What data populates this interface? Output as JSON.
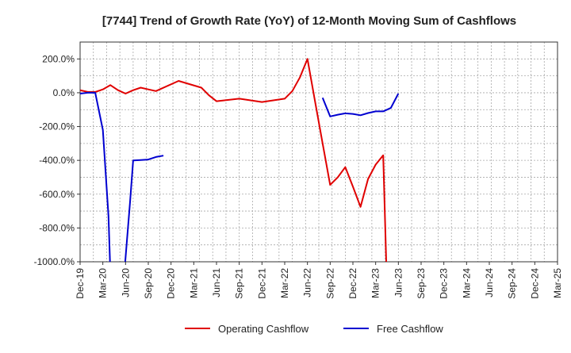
{
  "chart_data": {
    "type": "line",
    "title": "[7744]  Trend of Growth Rate (YoY) of 12-Month Moving Sum of Cashflows",
    "xlabel": "",
    "ylabel": "",
    "x_ticks": [
      "Dec-19",
      "Mar-20",
      "Jun-20",
      "Sep-20",
      "Dec-20",
      "Mar-21",
      "Jun-21",
      "Sep-21",
      "Dec-21",
      "Mar-22",
      "Jun-22",
      "Sep-22",
      "Dec-22",
      "Mar-23",
      "Jun-23",
      "Sep-23",
      "Dec-23",
      "Mar-24",
      "Jun-24",
      "Sep-24",
      "Dec-24",
      "Mar-25"
    ],
    "y_ticks": [
      "200.0%",
      "0.0%",
      "-200.0%",
      "-400.0%",
      "-600.0%",
      "-800.0%",
      "-1000.0%"
    ],
    "ylim": [
      -1000,
      300
    ],
    "grid": true,
    "legend_position": "bottom",
    "series": [
      {
        "name": "Operating Cashflow",
        "color": "#e00000",
        "points": [
          [
            0,
            15
          ],
          [
            1,
            5
          ],
          [
            2,
            5
          ],
          [
            3,
            20
          ],
          [
            4,
            45
          ],
          [
            5,
            15
          ],
          [
            6,
            -5
          ],
          [
            7,
            15
          ],
          [
            8,
            30
          ],
          [
            9,
            20
          ],
          [
            10,
            10
          ],
          [
            13,
            70
          ],
          [
            16,
            30
          ],
          [
            17,
            -15
          ],
          [
            18,
            -50
          ],
          [
            21,
            -35
          ],
          [
            24,
            -55
          ],
          [
            27,
            -35
          ],
          [
            28,
            10
          ],
          [
            29,
            90
          ],
          [
            30,
            200
          ],
          [
            31,
            -50
          ],
          [
            32,
            -300
          ],
          [
            33,
            -545
          ],
          [
            34,
            -500
          ],
          [
            35,
            -440
          ],
          [
            36,
            -555
          ],
          [
            37,
            -675
          ],
          [
            38,
            -510
          ],
          [
            39,
            -425
          ],
          [
            40,
            -370
          ],
          [
            40.4,
            -1000
          ]
        ]
      },
      {
        "name": "Free Cashflow",
        "color": "#0000d0",
        "points": [
          [
            0,
            -5
          ],
          [
            1,
            0
          ],
          [
            2,
            0
          ],
          [
            3,
            -220
          ],
          [
            3.75,
            -730
          ],
          [
            3.95,
            -1000
          ],
          null,
          [
            5.95,
            -1000
          ],
          [
            6.6,
            -640
          ],
          [
            7,
            -400
          ],
          [
            8,
            -398
          ],
          [
            9,
            -395
          ],
          [
            10,
            -380
          ],
          [
            11,
            -372
          ],
          null,
          [
            32,
            -30
          ],
          [
            33,
            -140
          ],
          [
            34,
            -130
          ],
          [
            35,
            -122
          ],
          [
            36,
            -125
          ],
          [
            37,
            -133
          ],
          [
            38,
            -120
          ],
          [
            39,
            -110
          ],
          [
            40,
            -110
          ],
          [
            41,
            -90
          ],
          [
            42,
            -5
          ]
        ]
      }
    ]
  }
}
